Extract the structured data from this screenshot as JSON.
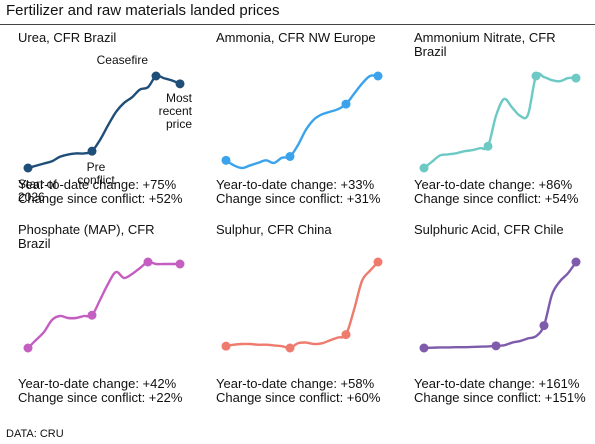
{
  "title": "Fertilizer and raw materials landed prices",
  "source": "DATA: CRU",
  "chart_data": [
    {
      "type": "line",
      "title": "Urea, CFR Brazil",
      "color": "#1f4e79",
      "values": [
        100,
        102,
        104,
        106,
        110,
        112,
        113,
        113,
        115,
        125,
        138,
        150,
        158,
        163,
        170,
        172,
        182,
        180,
        178,
        175
      ],
      "markers": [
        0,
        8,
        16,
        19
      ],
      "notes": [
        "Year-to-date change: +75%",
        "Change since conflict: +52%"
      ],
      "annotations": [
        {
          "index": 0,
          "text": [
            "Start of",
            "2026"
          ]
        },
        {
          "index": 8,
          "text": [
            "Pre",
            "conflict"
          ]
        },
        {
          "index": 16,
          "text": [
            "Ceasefire"
          ]
        },
        {
          "index": 19,
          "text": [
            "Most",
            "recent",
            "price"
          ]
        }
      ]
    },
    {
      "type": "line",
      "title": "Ammonia, CFR NW Europe",
      "color": "#3ba3ec",
      "values": [
        100,
        98,
        97,
        98,
        99,
        100,
        99,
        101,
        101.5,
        106,
        112,
        116,
        118,
        119,
        120,
        122,
        126,
        130,
        133,
        133
      ],
      "markers": [
        0,
        8,
        15,
        19
      ],
      "notes": [
        "Year-to-date change: +33%",
        "Change since conflict: +31%"
      ]
    },
    {
      "type": "line",
      "title": "Ammonium Nitrate, CFR Brazil",
      "color": "#6cc9c4",
      "values": [
        100,
        106,
        112,
        113,
        114,
        116,
        117,
        119,
        120.8,
        150,
        166,
        158,
        150,
        151,
        188,
        187,
        184,
        183,
        186,
        186
      ],
      "markers": [
        0,
        8,
        14,
        19
      ],
      "notes": [
        "Year-to-date change: +86%",
        "Change since conflict: +54%"
      ]
    },
    {
      "type": "line",
      "title": "Phosphate (MAP), CFR Brazil",
      "color": "#c45fc1",
      "values": [
        100,
        104,
        108,
        114,
        116,
        115,
        115,
        116,
        116.4,
        124,
        132,
        138,
        135,
        137,
        140,
        143,
        142,
        142,
        142,
        142
      ],
      "markers": [
        0,
        8,
        15,
        19
      ],
      "notes": [
        "Year-to-date change: +42%",
        "Change since conflict: +22%"
      ]
    },
    {
      "type": "line",
      "title": "Sulphur, CFR China",
      "color": "#ee7b6e",
      "values": [
        100,
        101,
        101.5,
        101.5,
        101,
        101,
        100.5,
        100,
        98.75,
        102,
        102.5,
        101.5,
        102,
        104,
        106,
        108,
        125,
        145,
        152,
        158
      ],
      "markers": [
        0,
        8,
        15,
        19
      ],
      "notes": [
        "Year-to-date change: +58%",
        "Change since conflict: +60%"
      ]
    },
    {
      "type": "line",
      "title": "Sulphuric Acid, CFR Chile",
      "color": "#7e5bab",
      "values": [
        100,
        100.5,
        101,
        101,
        101.5,
        101.5,
        102,
        102.5,
        103,
        104,
        105,
        110,
        113,
        118,
        122,
        142,
        200,
        225,
        240,
        261
      ],
      "markers": [
        0,
        9,
        15,
        19
      ],
      "notes": [
        "Year-to-date change: +161%",
        "Change since conflict: +151%"
      ]
    }
  ]
}
